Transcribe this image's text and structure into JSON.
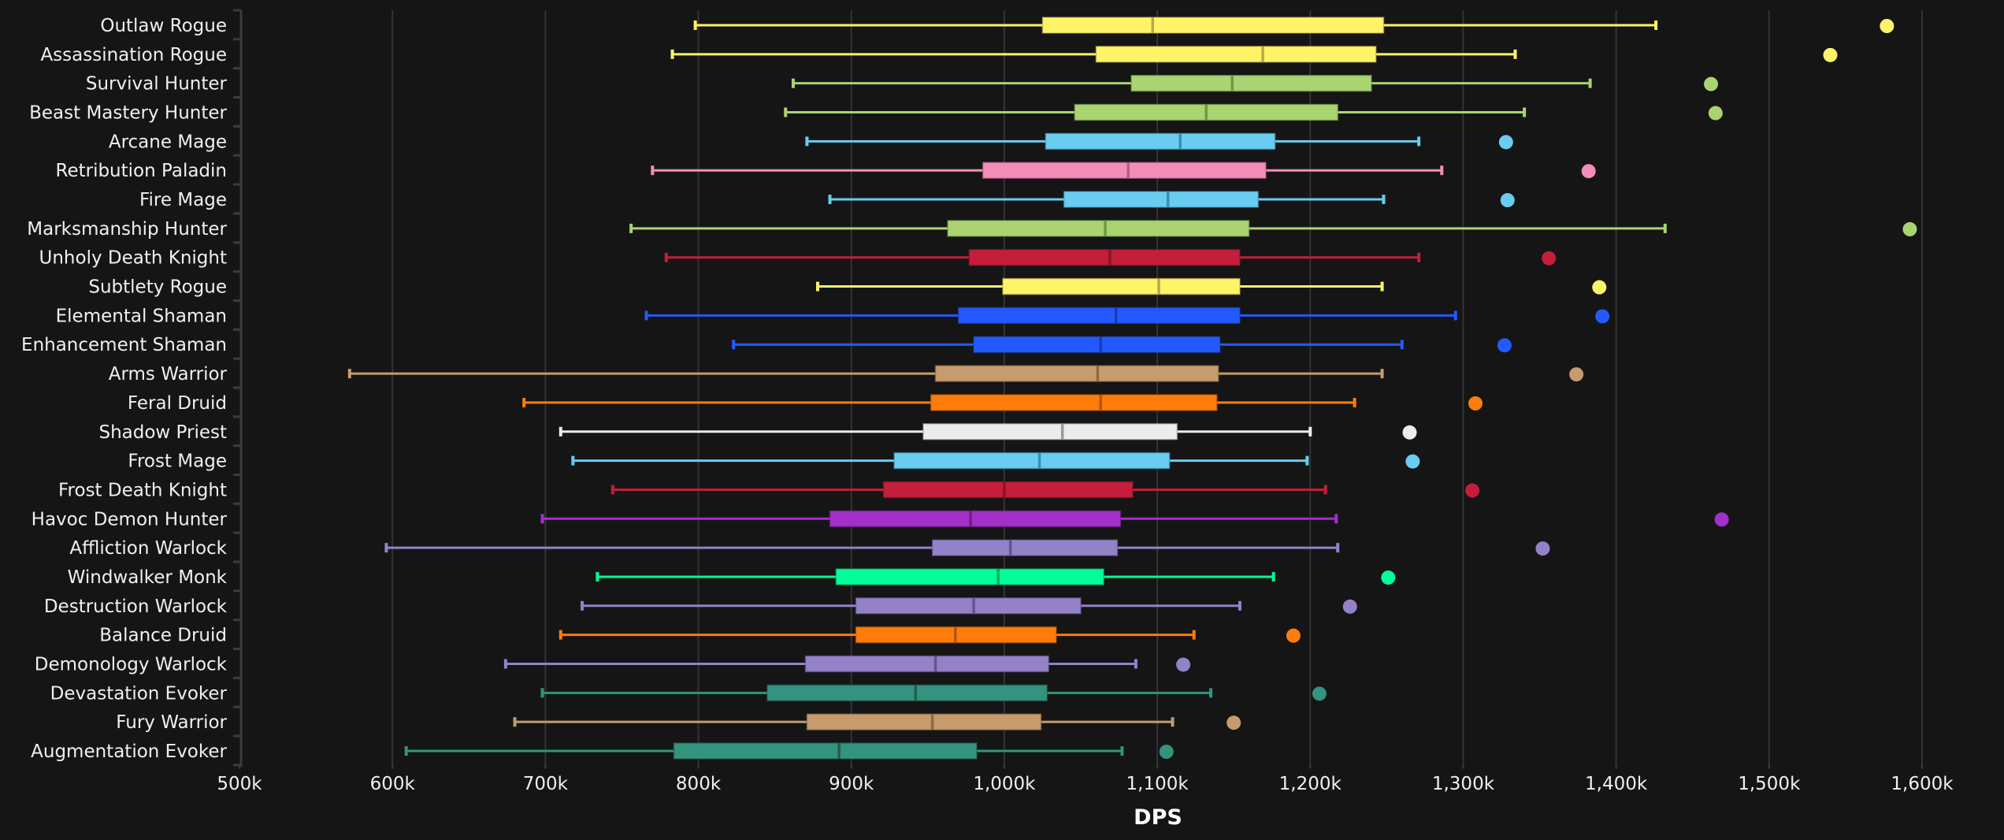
{
  "chart_data": {
    "type": "box",
    "xlabel": "DPS",
    "ylabel": "",
    "xlim": [
      500,
      1600
    ],
    "x_unit": "k",
    "x_ticks": [
      500,
      600,
      700,
      800,
      900,
      1000,
      1100,
      1200,
      1300,
      1400,
      1500,
      1600
    ],
    "x_tick_labels": [
      "500k",
      "600k",
      "700k",
      "800k",
      "900k",
      "1,000k",
      "1,100k",
      "1,200k",
      "1,300k",
      "1,400k",
      "1,500k",
      "1,600k"
    ],
    "grid": true,
    "legend": "none",
    "series": [
      {
        "name": "Outlaw Rogue",
        "color": "#FFF468",
        "median_color": "#b9a94a",
        "low": 798,
        "q1": 1025,
        "median": 1097,
        "q3": 1248,
        "high": 1426,
        "outlier": 1577
      },
      {
        "name": "Assassination Rogue",
        "color": "#FFF468",
        "median_color": "#b9a94a",
        "low": 783,
        "q1": 1060,
        "median": 1169,
        "q3": 1243,
        "high": 1334,
        "outlier": 1540
      },
      {
        "name": "Survival Hunter",
        "color": "#AAD372",
        "median_color": "#6f9a45",
        "low": 862,
        "q1": 1083,
        "median": 1149,
        "q3": 1240,
        "high": 1383,
        "outlier": 1462
      },
      {
        "name": "Beast Mastery Hunter",
        "color": "#AAD372",
        "median_color": "#6f9a45",
        "low": 857,
        "q1": 1046,
        "median": 1132,
        "q3": 1218,
        "high": 1340,
        "outlier": 1465
      },
      {
        "name": "Arcane Mage",
        "color": "#69CCF0",
        "median_color": "#3a8fb0",
        "low": 871,
        "q1": 1027,
        "median": 1115,
        "q3": 1177,
        "high": 1271,
        "outlier": 1328
      },
      {
        "name": "Retribution Paladin",
        "color": "#F48CBA",
        "median_color": "#b35d85",
        "low": 770,
        "q1": 986,
        "median": 1081,
        "q3": 1171,
        "high": 1286,
        "outlier": 1382
      },
      {
        "name": "Fire Mage",
        "color": "#69CCF0",
        "median_color": "#3a8fb0",
        "low": 886,
        "q1": 1039,
        "median": 1107,
        "q3": 1166,
        "high": 1248,
        "outlier": 1329
      },
      {
        "name": "Marksmanship Hunter",
        "color": "#AAD372",
        "median_color": "#6f9a45",
        "low": 756,
        "q1": 963,
        "median": 1066,
        "q3": 1160,
        "high": 1432,
        "outlier": 1592
      },
      {
        "name": "Unholy Death Knight",
        "color": "#C41E3A",
        "median_color": "#8a1428",
        "low": 779,
        "q1": 977,
        "median": 1069,
        "q3": 1154,
        "high": 1271,
        "outlier": 1356
      },
      {
        "name": "Subtlety Rogue",
        "color": "#FFF468",
        "median_color": "#b9a94a",
        "low": 878,
        "q1": 999,
        "median": 1101,
        "q3": 1154,
        "high": 1247,
        "outlier": 1389
      },
      {
        "name": "Elemental Shaman",
        "color": "#2459FF",
        "median_color": "#1a3db3",
        "low": 766,
        "q1": 970,
        "median": 1073,
        "q3": 1154,
        "high": 1295,
        "outlier": 1391
      },
      {
        "name": "Enhancement Shaman",
        "color": "#2459FF",
        "median_color": "#1a3db3",
        "low": 823,
        "q1": 980,
        "median": 1063,
        "q3": 1141,
        "high": 1260,
        "outlier": 1327
      },
      {
        "name": "Arms Warrior",
        "color": "#C69B6D",
        "median_color": "#8d6b45",
        "low": 572,
        "q1": 955,
        "median": 1061,
        "q3": 1140,
        "high": 1247,
        "outlier": 1374
      },
      {
        "name": "Feral Druid",
        "color": "#FF7C0A",
        "median_color": "#b55506",
        "low": 686,
        "q1": 952,
        "median": 1063,
        "q3": 1139,
        "high": 1229,
        "outlier": 1308
      },
      {
        "name": "Shadow Priest",
        "color": "#ECECEC",
        "median_color": "#9a9a9a",
        "low": 710,
        "q1": 947,
        "median": 1038,
        "q3": 1113,
        "high": 1200,
        "outlier": 1265
      },
      {
        "name": "Frost Mage",
        "color": "#69CCF0",
        "median_color": "#3a8fb0",
        "low": 718,
        "q1": 928,
        "median": 1023,
        "q3": 1108,
        "high": 1198,
        "outlier": 1267
      },
      {
        "name": "Frost Death Knight",
        "color": "#C41E3A",
        "median_color": "#8a1428",
        "low": 744,
        "q1": 921,
        "median": 1000,
        "q3": 1084,
        "high": 1210,
        "outlier": 1306
      },
      {
        "name": "Havoc Demon Hunter",
        "color": "#A330C9",
        "median_color": "#6e1f8a",
        "low": 698,
        "q1": 886,
        "median": 978,
        "q3": 1076,
        "high": 1217,
        "outlier": 1469
      },
      {
        "name": "Affliction Warlock",
        "color": "#9482C9",
        "median_color": "#64558f",
        "low": 596,
        "q1": 953,
        "median": 1004,
        "q3": 1074,
        "high": 1218,
        "outlier": 1352
      },
      {
        "name": "Windwalker Monk",
        "color": "#00FF98",
        "median_color": "#00a864",
        "low": 734,
        "q1": 890,
        "median": 996,
        "q3": 1065,
        "high": 1176,
        "outlier": 1251
      },
      {
        "name": "Destruction Warlock",
        "color": "#9482C9",
        "median_color": "#64558f",
        "low": 724,
        "q1": 903,
        "median": 980,
        "q3": 1050,
        "high": 1154,
        "outlier": 1226
      },
      {
        "name": "Balance Druid",
        "color": "#FF7C0A",
        "median_color": "#b55506",
        "low": 710,
        "q1": 903,
        "median": 968,
        "q3": 1034,
        "high": 1124,
        "outlier": 1189
      },
      {
        "name": "Demonology Warlock",
        "color": "#9482C9",
        "median_color": "#64558f",
        "low": 674,
        "q1": 870,
        "median": 955,
        "q3": 1029,
        "high": 1086,
        "outlier": 1117
      },
      {
        "name": "Devastation Evoker",
        "color": "#33937F",
        "median_color": "#1f5f52",
        "low": 698,
        "q1": 845,
        "median": 942,
        "q3": 1028,
        "high": 1135,
        "outlier": 1206
      },
      {
        "name": "Fury Warrior",
        "color": "#C69B6D",
        "median_color": "#8d6b45",
        "low": 680,
        "q1": 871,
        "median": 953,
        "q3": 1024,
        "high": 1110,
        "outlier": 1150
      },
      {
        "name": "Augmentation Evoker",
        "color": "#33937F",
        "median_color": "#1f5f52",
        "low": 609,
        "q1": 784,
        "median": 892,
        "q3": 982,
        "high": 1077,
        "outlier": 1106
      }
    ]
  }
}
